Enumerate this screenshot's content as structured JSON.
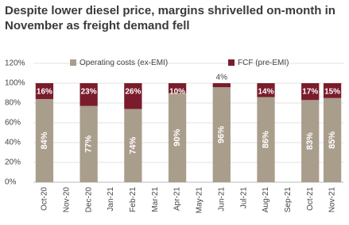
{
  "chart_data": {
    "type": "stacked-bar",
    "title": "Despite lower diesel price, margins shrivelled  on-month in November as freight demand fell",
    "categories": [
      "Oct-20",
      "Nov-20",
      "Dec-20",
      "Jan-21",
      "Feb-21",
      "Mar-21",
      "Apr-21",
      "May-21",
      "Jun-21",
      "Jul-21",
      "Aug-21",
      "Sep-21",
      "Oct-21",
      "Nov-21"
    ],
    "series": [
      {
        "name": "Operating costs (ex-EMI)",
        "color": "#a99d8c",
        "values": [
          84,
          null,
          77,
          null,
          74,
          null,
          90,
          null,
          96,
          null,
          86,
          null,
          83,
          85
        ],
        "value_labels": [
          "84%",
          null,
          "77%",
          null,
          "74%",
          null,
          "90%",
          null,
          "96%",
          null,
          "86%",
          null,
          "83%",
          "85%"
        ]
      },
      {
        "name": "FCF (pre-EMI)",
        "color": "#7a1c2c",
        "values": [
          16,
          null,
          23,
          null,
          26,
          null,
          10,
          null,
          4,
          null,
          14,
          null,
          17,
          15
        ],
        "value_labels": [
          "16%",
          null,
          "23%",
          null,
          "26%",
          null,
          "10%",
          null,
          "4%",
          null,
          "14%",
          null,
          "17%",
          "15%"
        ]
      }
    ],
    "ylim": [
      0,
      120
    ],
    "yticks": [
      {
        "value": 0,
        "label": "0%"
      },
      {
        "value": 20,
        "label": "20%"
      },
      {
        "value": 40,
        "label": "40%"
      },
      {
        "value": 60,
        "label": "60%"
      },
      {
        "value": 80,
        "label": "80%"
      },
      {
        "value": 100,
        "label": "100%"
      },
      {
        "value": 120,
        "label": "120%"
      }
    ],
    "grid": true
  }
}
